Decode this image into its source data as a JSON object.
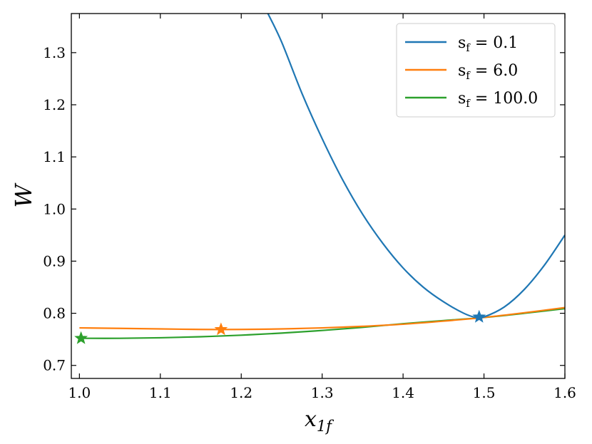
{
  "chart_data": {
    "type": "line",
    "xlabel": "x",
    "xlabel_sub": "1f",
    "ylabel": "W",
    "xlim": [
      0.99,
      1.6
    ],
    "ylim": [
      0.675,
      1.375
    ],
    "xticks": [
      1.0,
      1.1,
      1.2,
      1.3,
      1.4,
      1.5,
      1.6
    ],
    "xtick_labels": [
      "1.0",
      "1.1",
      "1.2",
      "1.3",
      "1.4",
      "1.5",
      "1.6"
    ],
    "yticks": [
      0.7,
      0.8,
      0.9,
      1.0,
      1.1,
      1.2,
      1.3
    ],
    "ytick_labels": [
      "0.7",
      "0.8",
      "0.9",
      "1.0",
      "1.1",
      "1.2",
      "1.3"
    ],
    "grid": false,
    "legend_position": "top-right",
    "series": [
      {
        "name": "s",
        "name_sub": "f",
        "name_value": " = 0.1",
        "color": "#1f77b4",
        "x": [
          1.233,
          1.25,
          1.275,
          1.3,
          1.325,
          1.35,
          1.375,
          1.4,
          1.425,
          1.45,
          1.475,
          1.49,
          1.5,
          1.525,
          1.55,
          1.575,
          1.6
        ],
        "y": [
          1.375,
          1.32,
          1.222,
          1.135,
          1.057,
          0.99,
          0.934,
          0.887,
          0.85,
          0.822,
          0.8,
          0.792,
          0.793,
          0.812,
          0.846,
          0.893,
          0.95
        ],
        "marker": {
          "x": 1.494,
          "y": 0.793
        }
      },
      {
        "name": "s",
        "name_sub": "f",
        "name_value": " = 6.0",
        "color": "#ff7f0e",
        "x": [
          1.0,
          1.05,
          1.1,
          1.15,
          1.2,
          1.25,
          1.3,
          1.35,
          1.4,
          1.45,
          1.5,
          1.55,
          1.6
        ],
        "y": [
          0.772,
          0.771,
          0.77,
          0.769,
          0.769,
          0.77,
          0.772,
          0.775,
          0.779,
          0.785,
          0.792,
          0.801,
          0.811
        ],
        "marker": {
          "x": 1.175,
          "y": 0.769
        }
      },
      {
        "name": "s",
        "name_sub": "f",
        "name_value": " = 100.0",
        "color": "#2ca02c",
        "x": [
          1.0,
          1.05,
          1.1,
          1.15,
          1.2,
          1.25,
          1.3,
          1.35,
          1.4,
          1.45,
          1.5,
          1.55,
          1.6
        ],
        "y": [
          0.752,
          0.752,
          0.753,
          0.755,
          0.758,
          0.762,
          0.767,
          0.773,
          0.78,
          0.786,
          0.792,
          0.8,
          0.809
        ],
        "marker": {
          "x": 1.002,
          "y": 0.752
        }
      }
    ]
  }
}
